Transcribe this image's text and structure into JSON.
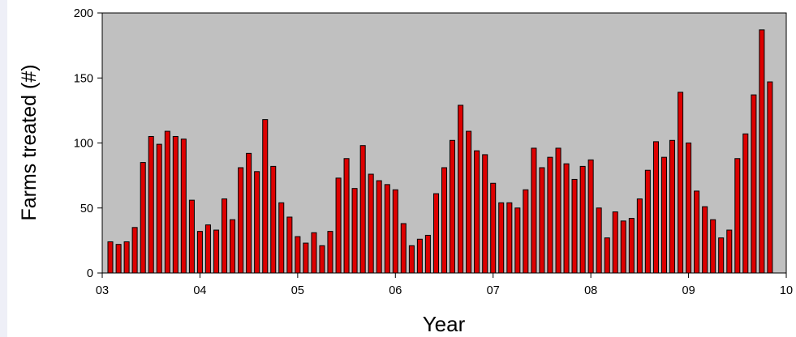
{
  "chart_data": {
    "type": "bar",
    "xlabel": "Year",
    "ylabel": "Farms treated (#)",
    "x_tick_labels": [
      "03",
      "04",
      "05",
      "06",
      "07",
      "08",
      "09",
      "10"
    ],
    "y_tick_labels": [
      "0",
      "50",
      "100",
      "150",
      "200"
    ],
    "xlim": [
      3,
      10
    ],
    "ylim": [
      0,
      200
    ],
    "grid": false,
    "colors": {
      "bar_fill": "#dd0000",
      "bar_stroke": "#000000",
      "plot_bg": "#c0c0c0"
    },
    "x": [
      3.083,
      3.167,
      3.25,
      3.333,
      3.417,
      3.5,
      3.583,
      3.667,
      3.75,
      3.833,
      3.917,
      4.0,
      4.083,
      4.167,
      4.25,
      4.333,
      4.417,
      4.5,
      4.583,
      4.667,
      4.75,
      4.833,
      4.917,
      5.0,
      5.083,
      5.167,
      5.25,
      5.333,
      5.417,
      5.5,
      5.583,
      5.667,
      5.75,
      5.833,
      5.917,
      6.0,
      6.083,
      6.167,
      6.25,
      6.333,
      6.417,
      6.5,
      6.583,
      6.667,
      6.75,
      6.833,
      6.917,
      7.0,
      7.083,
      7.167,
      7.25,
      7.333,
      7.417,
      7.5,
      7.583,
      7.667,
      7.75,
      7.833,
      7.917,
      8.0,
      8.083,
      8.167,
      8.25,
      8.333,
      8.417,
      8.5,
      8.583,
      8.667,
      8.75,
      8.833,
      8.917,
      9.0,
      9.083,
      9.167,
      9.25,
      9.333,
      9.417,
      9.5,
      9.583,
      9.667,
      9.75,
      9.833
    ],
    "values": [
      24,
      22,
      24,
      35,
      85,
      105,
      99,
      109,
      105,
      103,
      56,
      32,
      37,
      33,
      57,
      41,
      81,
      92,
      78,
      118,
      82,
      54,
      43,
      28,
      23,
      31,
      21,
      32,
      73,
      88,
      65,
      98,
      76,
      71,
      68,
      64,
      38,
      21,
      26,
      29,
      61,
      81,
      102,
      129,
      109,
      94,
      91,
      69,
      54,
      54,
      50,
      64,
      96,
      81,
      89,
      96,
      84,
      72,
      82,
      87,
      50,
      27,
      47,
      40,
      42,
      57,
      79,
      101,
      89,
      102,
      139,
      100,
      63,
      51,
      41,
      27,
      33,
      88,
      107,
      137,
      187,
      147
    ]
  }
}
